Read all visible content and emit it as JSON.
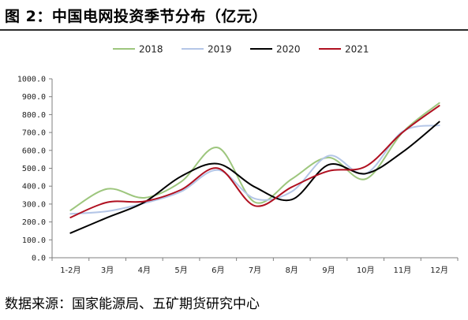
{
  "title": "图 2：中国电网投资季节分布（亿元）",
  "source": "数据来源：国家能源局、五矿期货研究中心",
  "chart_data": {
    "type": "line",
    "smooth": true,
    "title": "图 2：中国电网投资季节分布（亿元）",
    "xlabel": "",
    "ylabel": "",
    "categories": [
      "1-2月",
      "3月",
      "4月",
      "5月",
      "6月",
      "7月",
      "8月",
      "9月",
      "10月",
      "11月",
      "12月"
    ],
    "ylim": [
      0,
      1000
    ],
    "yticks": [
      "0.0",
      "100.0",
      "200.0",
      "300.0",
      "400.0",
      "500.0",
      "600.0",
      "700.0",
      "800.0",
      "900.0",
      "1000.0"
    ],
    "legend_position": "top-center",
    "grid": false,
    "series": [
      {
        "name": "2018",
        "color": "#9dc67d",
        "values": [
          265,
          385,
          335,
          425,
          615,
          310,
          440,
          560,
          440,
          700,
          865
        ]
      },
      {
        "name": "2019",
        "color": "#b4c6e7",
        "values": [
          245,
          260,
          305,
          370,
          490,
          330,
          370,
          570,
          470,
          705,
          740
        ]
      },
      {
        "name": "2020",
        "color": "#000000",
        "values": [
          138,
          225,
          310,
          455,
          525,
          395,
          325,
          520,
          470,
          590,
          760
        ]
      },
      {
        "name": "2021",
        "color": "#b01020",
        "values": [
          225,
          310,
          315,
          380,
          500,
          290,
          395,
          485,
          510,
          700,
          850
        ]
      }
    ]
  }
}
